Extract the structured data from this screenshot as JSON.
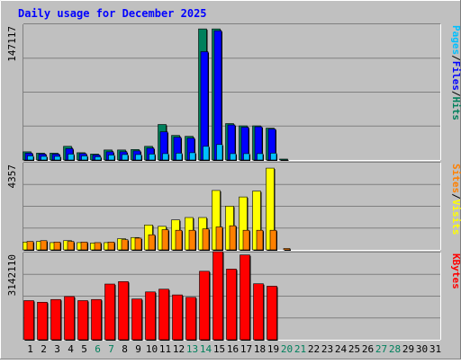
{
  "chart_data": {
    "type": "bar",
    "title": "Daily usage for December 2025",
    "categories": [
      "1",
      "2",
      "3",
      "4",
      "5",
      "6",
      "7",
      "8",
      "9",
      "10",
      "11",
      "12",
      "13",
      "14",
      "15",
      "16",
      "17",
      "18",
      "19",
      "20",
      "21",
      "22",
      "23",
      "24",
      "25",
      "26",
      "27",
      "28",
      "29",
      "30",
      "31"
    ],
    "weekend_days": [
      "6",
      "7",
      "13",
      "14",
      "20",
      "21",
      "27",
      "28"
    ],
    "panels": [
      {
        "id": "hits-files-pages",
        "ymax_label": "147117",
        "ymax": 147117,
        "legend": [
          {
            "label": "Hits",
            "color": "#00805c"
          },
          {
            "label": "/",
            "color": "#000000"
          },
          {
            "label": "Files",
            "color": "#0000ff"
          },
          {
            "label": "/",
            "color": "#000000"
          },
          {
            "label": "Pages",
            "color": "#00c0ff"
          }
        ],
        "series": [
          {
            "name": "Hits",
            "color": "#00805c",
            "values": [
              9000,
              7500,
              7500,
              15000,
              8000,
              6500,
              11000,
              11000,
              11500,
              15000,
              39000,
              27000,
              26000,
              144000,
              144000,
              40000,
              37500,
              37500,
              35000,
              1000,
              0,
              0,
              0,
              0,
              0,
              0,
              0,
              0,
              0,
              0,
              0
            ]
          },
          {
            "name": "Files",
            "color": "#0000ff",
            "values": [
              7500,
              6500,
              6500,
              12500,
              7000,
              5500,
              9000,
              9000,
              10000,
              13000,
              31000,
              25000,
              24000,
              119000,
              142000,
              38500,
              36000,
              36500,
              34000,
              0,
              0,
              0,
              0,
              0,
              0,
              0,
              0,
              0,
              0,
              0,
              0
            ]
          },
          {
            "name": "Pages",
            "color": "#00c0ff",
            "values": [
              4500,
              4000,
              4000,
              6500,
              4500,
              3500,
              5500,
              6000,
              6000,
              6500,
              7000,
              7500,
              8000,
              15000,
              17000,
              7000,
              7000,
              7000,
              7500,
              0,
              0,
              0,
              0,
              0,
              0,
              0,
              0,
              0,
              0,
              0,
              0
            ]
          }
        ]
      },
      {
        "id": "visits-sites",
        "ymax_label": "4357",
        "ymax": 4357,
        "legend": [
          {
            "label": "Visits",
            "color": "#ffff00"
          },
          {
            "label": "/",
            "color": "#000000"
          },
          {
            "label": "Sites",
            "color": "#ff8000"
          }
        ],
        "series": [
          {
            "name": "Visits",
            "color": "#ffff00",
            "values": [
              400,
              430,
              370,
              470,
              370,
              350,
              370,
              570,
              630,
              1270,
              1200,
              1530,
              1650,
              1650,
              3030,
              2230,
              2700,
              3000,
              4170,
              0,
              0,
              0,
              0,
              0,
              0,
              0,
              0,
              0,
              0,
              0,
              0
            ]
          },
          {
            "name": "Sites",
            "color": "#ff8000",
            "values": [
              430,
              470,
              400,
              430,
              400,
              370,
              400,
              520,
              600,
              770,
              1030,
              1000,
              1000,
              1070,
              1170,
              1230,
              1000,
              1000,
              1000,
              70,
              0,
              0,
              0,
              0,
              0,
              0,
              0,
              0,
              0,
              0,
              0
            ]
          }
        ]
      },
      {
        "id": "kbytes",
        "ymax_label": "3142110",
        "ymax": 3142110,
        "legend": [
          {
            "label": "KBytes",
            "color": "#ff0000"
          }
        ],
        "series": [
          {
            "name": "KBytes",
            "color": "#ff0000",
            "values": [
              1440000,
              1380000,
              1480000,
              1590000,
              1440000,
              1480000,
              2050000,
              2140000,
              1500000,
              1760000,
              1860000,
              1650000,
              1560000,
              2520000,
              3240000,
              2600000,
              3120000,
              2060000,
              1970000,
              0,
              0,
              0,
              0,
              0,
              0,
              0,
              0,
              0,
              0,
              0,
              0
            ]
          }
        ]
      }
    ]
  }
}
